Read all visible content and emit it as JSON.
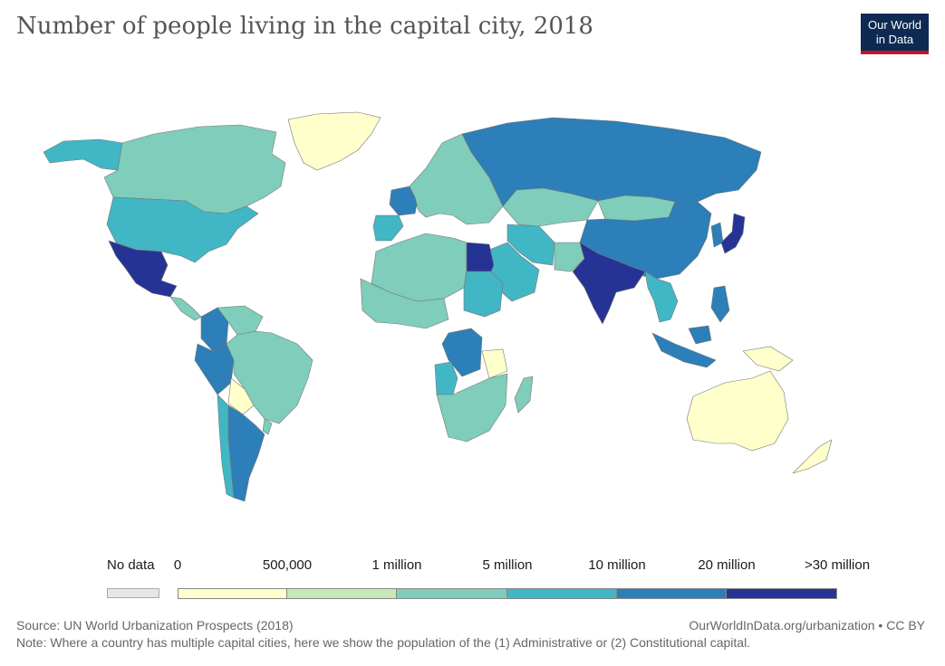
{
  "title": "Number of people living in the capital city, 2018",
  "logo": {
    "line1": "Our World",
    "line2": "in Data"
  },
  "legend": {
    "no_data_label": "No data",
    "no_data_color": "#e6e6e6",
    "ticks": [
      "0",
      "500,000",
      "1 million",
      "5 million",
      "10 million",
      "20 million",
      ">30 million"
    ],
    "bins": [
      {
        "color": "#ffffcc"
      },
      {
        "color": "#c7e9b4"
      },
      {
        "color": "#7fcdbb"
      },
      {
        "color": "#41b6c4"
      },
      {
        "color": "#2c7fb8"
      },
      {
        "color": "#253494"
      }
    ]
  },
  "regions": [
    {
      "name": "Alaska",
      "bin": 3
    },
    {
      "name": "Canada",
      "bin": 2
    },
    {
      "name": "Greenland",
      "bin": 0
    },
    {
      "name": "United States",
      "bin": 3
    },
    {
      "name": "Mexico",
      "bin": 5
    },
    {
      "name": "Central America",
      "bin": 2
    },
    {
      "name": "Colombia",
      "bin": 4
    },
    {
      "name": "Venezuela",
      "bin": 2
    },
    {
      "name": "Peru",
      "bin": 4
    },
    {
      "name": "Brazil",
      "bin": 2
    },
    {
      "name": "Bolivia",
      "bin": 0
    },
    {
      "name": "Argentina",
      "bin": 4
    },
    {
      "name": "Chile",
      "bin": 3
    },
    {
      "name": "Uruguay",
      "bin": 2
    },
    {
      "name": "France",
      "bin": 4
    },
    {
      "name": "Spain",
      "bin": 3
    },
    {
      "name": "Europe",
      "bin": 2
    },
    {
      "name": "Russia",
      "bin": 4
    },
    {
      "name": "Kazakhstan",
      "bin": 2
    },
    {
      "name": "China",
      "bin": 4
    },
    {
      "name": "Mongolia",
      "bin": 2
    },
    {
      "name": "Japan",
      "bin": 5
    },
    {
      "name": "Korea",
      "bin": 4
    },
    {
      "name": "India",
      "bin": 5
    },
    {
      "name": "Pakistan",
      "bin": 2
    },
    {
      "name": "Iran",
      "bin": 3
    },
    {
      "name": "Saudi Arabia",
      "bin": 3
    },
    {
      "name": "Egypt",
      "bin": 5
    },
    {
      "name": "Sudan",
      "bin": 3
    },
    {
      "name": "North Africa",
      "bin": 2
    },
    {
      "name": "West Africa",
      "bin": 2
    },
    {
      "name": "DR Congo",
      "bin": 4
    },
    {
      "name": "Angola",
      "bin": 3
    },
    {
      "name": "Tanzania",
      "bin": 0
    },
    {
      "name": "Southern Africa",
      "bin": 2
    },
    {
      "name": "Madagascar",
      "bin": 2
    },
    {
      "name": "Southeast Asia",
      "bin": 3
    },
    {
      "name": "Indonesia",
      "bin": 4
    },
    {
      "name": "Philippines",
      "bin": 4
    },
    {
      "name": "Papua New Guinea",
      "bin": 0
    },
    {
      "name": "Australia",
      "bin": 0
    },
    {
      "name": "New Zealand",
      "bin": 0
    }
  ],
  "source": "Source: UN World Urbanization Prospects (2018)",
  "credit": "OurWorldInData.org/urbanization • CC BY",
  "note": "Note: Where a country has multiple capital cities, here we show the population of the (1) Administrative or (2) Constitutional capital."
}
